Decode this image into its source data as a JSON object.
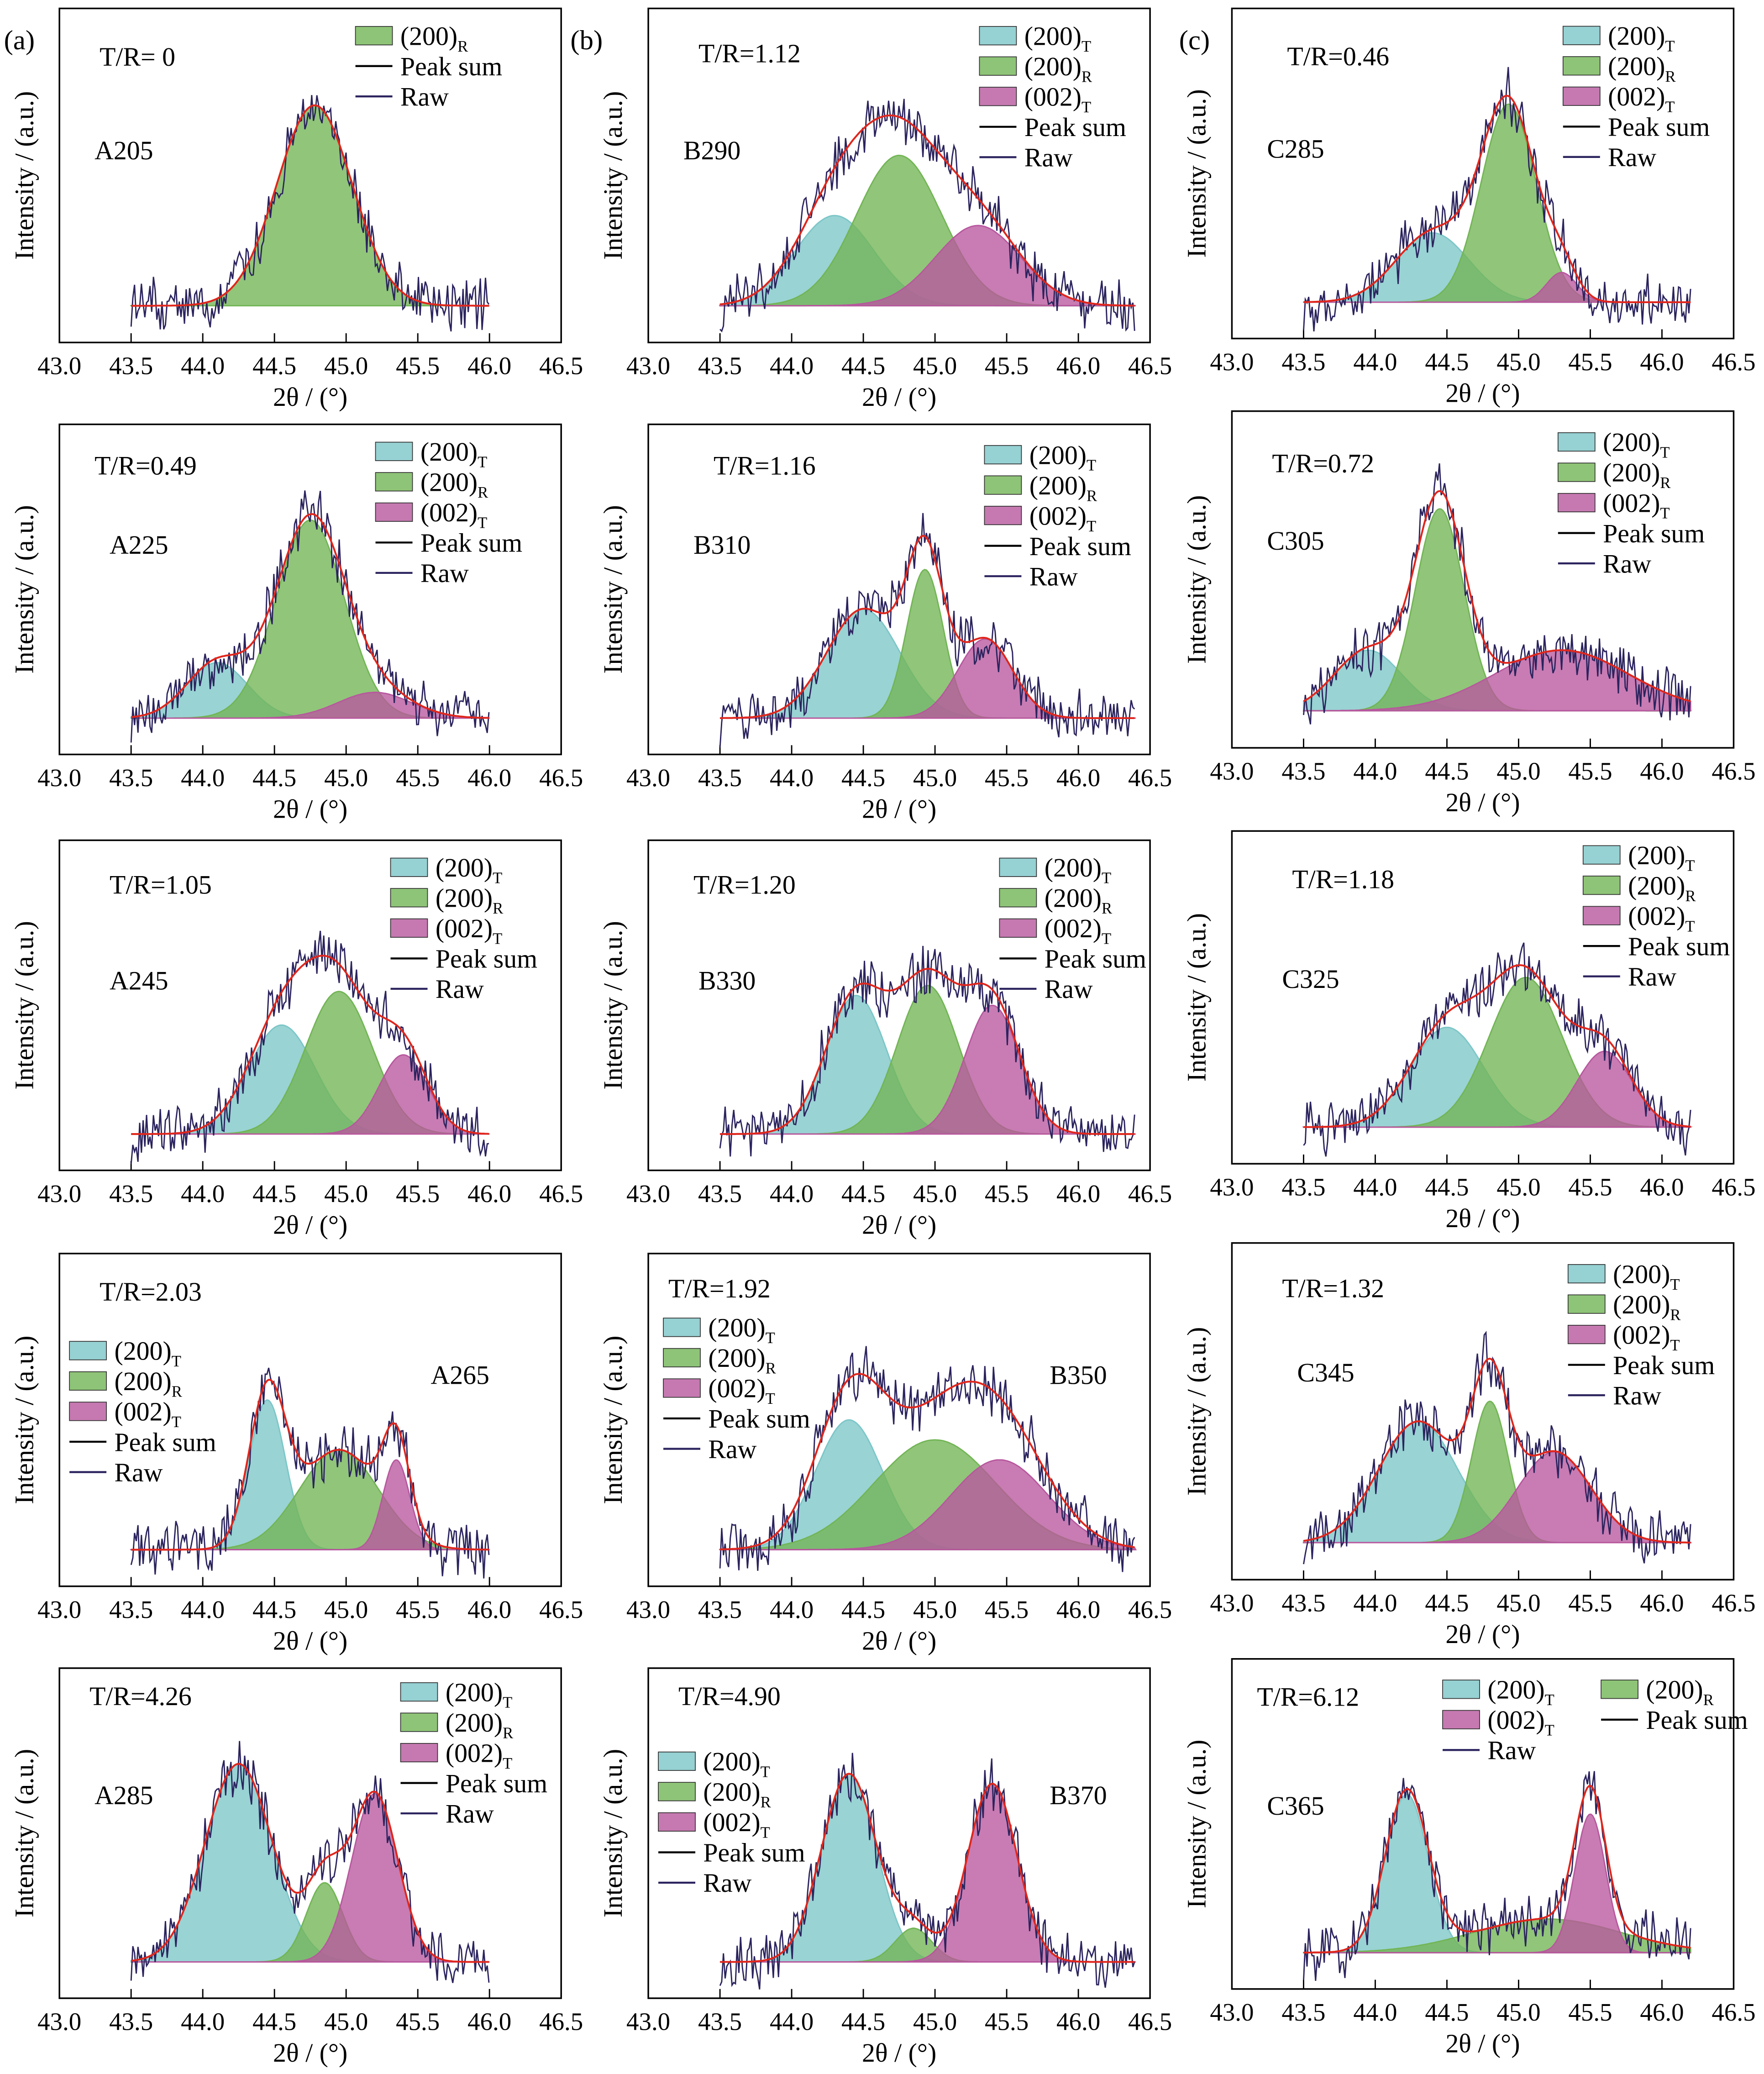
{
  "panel_labels": [
    "(a)",
    "(b)",
    "(c)"
  ],
  "colors": {
    "T200": "#7cc6c8",
    "R200": "#72b555",
    "T002": "#b8579e",
    "peak_sum": "#e0261c",
    "raw": "#2b245e",
    "legend_line": "#000000"
  },
  "chart_data": [
    {
      "type": "line",
      "column": 0,
      "row": 0,
      "ratio_label": "T/R= 0",
      "sample": "A205",
      "xlabel": "2θ / (°)",
      "ylabel": "Intensity / (a.u.)",
      "xlim": [
        43.0,
        46.5
      ],
      "xticks": [
        "43.0",
        "43.5",
        "44.0",
        "44.5",
        "45.0",
        "45.5",
        "46.0",
        "46.5"
      ],
      "raw_range": [
        43.5,
        46.0
      ],
      "components": [
        {
          "key": "R200",
          "center": 44.78,
          "height": 100,
          "fwhm": 0.62
        }
      ],
      "legend": [
        {
          "key": "R200",
          "label": "(200)",
          "sub": "R"
        },
        {
          "key": "peak_sum",
          "label": "Peak sum",
          "sub": ""
        },
        {
          "key": "raw",
          "label": "Raw",
          "sub": ""
        }
      ]
    },
    {
      "type": "line",
      "column": 0,
      "row": 1,
      "ratio_label": "T/R=0.49",
      "sample": "A225",
      "xlabel": "2θ / (°)",
      "ylabel": "Intensity / (a.u.)",
      "xlim": [
        43.0,
        46.5
      ],
      "xticks": [
        "43.0",
        "43.5",
        "44.0",
        "44.5",
        "45.0",
        "45.5",
        "46.0",
        "46.5"
      ],
      "raw_range": [
        43.5,
        46.0
      ],
      "components": [
        {
          "key": "T200",
          "center": 44.1,
          "height": 28,
          "fwhm": 0.5
        },
        {
          "key": "R200",
          "center": 44.75,
          "height": 100,
          "fwhm": 0.56
        },
        {
          "key": "T002",
          "center": 45.2,
          "height": 13,
          "fwhm": 0.6
        }
      ],
      "legend": [
        {
          "key": "T200",
          "label": "(200)",
          "sub": "T"
        },
        {
          "key": "R200",
          "label": "(200)",
          "sub": "R"
        },
        {
          "key": "T002",
          "label": "(002)",
          "sub": "T"
        },
        {
          "key": "peak_sum",
          "label": "Peak sum",
          "sub": ""
        },
        {
          "key": "raw",
          "label": "Raw",
          "sub": ""
        }
      ]
    },
    {
      "type": "line",
      "column": 0,
      "row": 2,
      "ratio_label": "T/R=1.05",
      "sample": "A245",
      "xlabel": "2θ / (°)",
      "ylabel": "Intensity / (a.u.)",
      "xlim": [
        43.0,
        46.5
      ],
      "xticks": [
        "43.0",
        "43.5",
        "44.0",
        "44.5",
        "45.0",
        "45.5",
        "46.0",
        "46.5"
      ],
      "raw_range": [
        43.5,
        46.0
      ],
      "components": [
        {
          "key": "T200",
          "center": 44.55,
          "height": 55,
          "fwhm": 0.55
        },
        {
          "key": "R200",
          "center": 44.95,
          "height": 72,
          "fwhm": 0.55
        },
        {
          "key": "T002",
          "center": 45.4,
          "height": 40,
          "fwhm": 0.4
        }
      ],
      "legend": [
        {
          "key": "T200",
          "label": "(200)",
          "sub": "T"
        },
        {
          "key": "R200",
          "label": "(200)",
          "sub": "R"
        },
        {
          "key": "T002",
          "label": "(002)",
          "sub": "T"
        },
        {
          "key": "peak_sum",
          "label": "Peak sum",
          "sub": ""
        },
        {
          "key": "raw",
          "label": "Raw",
          "sub": ""
        }
      ]
    },
    {
      "type": "line",
      "column": 0,
      "row": 3,
      "ratio_label": "T/R=2.03",
      "sample": "A265",
      "xlabel": "2θ / (°)",
      "ylabel": "Intensity / (a.u.)",
      "xlim": [
        43.0,
        46.5
      ],
      "xticks": [
        "43.0",
        "43.5",
        "44.0",
        "44.5",
        "45.0",
        "45.5",
        "46.0",
        "46.5"
      ],
      "raw_range": [
        43.5,
        46.0
      ],
      "components": [
        {
          "key": "T200",
          "center": 44.45,
          "height": 75,
          "fwhm": 0.3
        },
        {
          "key": "R200",
          "center": 44.95,
          "height": 50,
          "fwhm": 0.65
        },
        {
          "key": "T002",
          "center": 45.35,
          "height": 45,
          "fwhm": 0.22
        }
      ],
      "legend": [
        {
          "key": "T200",
          "label": "(200)",
          "sub": "T"
        },
        {
          "key": "R200",
          "label": "(200)",
          "sub": "R"
        },
        {
          "key": "T002",
          "label": "(002)",
          "sub": "T"
        },
        {
          "key": "peak_sum",
          "label": "Peak sum",
          "sub": ""
        },
        {
          "key": "raw",
          "label": "Raw",
          "sub": ""
        }
      ]
    },
    {
      "type": "line",
      "column": 0,
      "row": 4,
      "ratio_label": "T/R=4.26",
      "sample": "A285",
      "xlabel": "2θ / (°)",
      "ylabel": "Intensity / (a.u.)",
      "xlim": [
        43.0,
        46.5
      ],
      "xticks": [
        "43.0",
        "43.5",
        "44.0",
        "44.5",
        "45.0",
        "45.5",
        "46.0",
        "46.5"
      ],
      "raw_range": [
        43.5,
        46.0
      ],
      "components": [
        {
          "key": "T200",
          "center": 44.25,
          "height": 100,
          "fwhm": 0.55
        },
        {
          "key": "R200",
          "center": 44.85,
          "height": 40,
          "fwhm": 0.3
        },
        {
          "key": "T002",
          "center": 45.2,
          "height": 85,
          "fwhm": 0.38
        }
      ],
      "legend": [
        {
          "key": "T200",
          "label": "(200)",
          "sub": "T"
        },
        {
          "key": "R200",
          "label": "(200)",
          "sub": "R"
        },
        {
          "key": "T002",
          "label": "(002)",
          "sub": "T"
        },
        {
          "key": "peak_sum",
          "label": "Peak sum",
          "sub": ""
        },
        {
          "key": "raw",
          "label": "Raw",
          "sub": ""
        }
      ]
    },
    {
      "type": "line",
      "column": 1,
      "row": 0,
      "ratio_label": "T/R=1.12",
      "sample": "B290",
      "xlabel": "2θ / (°)",
      "ylabel": "Intensity / (a.u.)",
      "xlim": [
        43.0,
        46.5
      ],
      "xticks": [
        "43.0",
        "43.5",
        "44.0",
        "44.5",
        "45.0",
        "45.5",
        "46.0",
        "46.5"
      ],
      "raw_range": [
        43.5,
        46.4
      ],
      "components": [
        {
          "key": "T200",
          "center": 44.3,
          "height": 45,
          "fwhm": 0.65
        },
        {
          "key": "R200",
          "center": 44.75,
          "height": 75,
          "fwhm": 0.7
        },
        {
          "key": "T002",
          "center": 45.3,
          "height": 40,
          "fwhm": 0.7
        }
      ],
      "legend": [
        {
          "key": "T200",
          "label": "(200)",
          "sub": "T"
        },
        {
          "key": "R200",
          "label": "(200)",
          "sub": "R"
        },
        {
          "key": "T002",
          "label": "(002)",
          "sub": "T"
        },
        {
          "key": "peak_sum",
          "label": "Peak sum",
          "sub": ""
        },
        {
          "key": "raw",
          "label": "Raw",
          "sub": ""
        }
      ]
    },
    {
      "type": "line",
      "column": 1,
      "row": 1,
      "ratio_label": "T/R=1.16",
      "sample": "B310",
      "xlabel": "2θ / (°)",
      "ylabel": "Intensity / (a.u.)",
      "xlim": [
        43.0,
        46.5
      ],
      "xticks": [
        "43.0",
        "43.5",
        "44.0",
        "44.5",
        "45.0",
        "45.5",
        "46.0",
        "46.5"
      ],
      "raw_range": [
        43.5,
        46.4
      ],
      "components": [
        {
          "key": "T200",
          "center": 44.5,
          "height": 55,
          "fwhm": 0.6
        },
        {
          "key": "R200",
          "center": 44.93,
          "height": 75,
          "fwhm": 0.3
        },
        {
          "key": "T002",
          "center": 45.35,
          "height": 40,
          "fwhm": 0.45
        }
      ],
      "legend": [
        {
          "key": "T200",
          "label": "(200)",
          "sub": "T"
        },
        {
          "key": "R200",
          "label": "(200)",
          "sub": "R"
        },
        {
          "key": "T002",
          "label": "(002)",
          "sub": "T"
        },
        {
          "key": "peak_sum",
          "label": "Peak sum",
          "sub": ""
        },
        {
          "key": "raw",
          "label": "Raw",
          "sub": ""
        }
      ]
    },
    {
      "type": "line",
      "column": 1,
      "row": 2,
      "ratio_label": "T/R=1.20",
      "sample": "B330",
      "xlabel": "2θ / (°)",
      "ylabel": "Intensity / (a.u.)",
      "xlim": [
        43.0,
        46.5
      ],
      "xticks": [
        "43.0",
        "43.5",
        "44.0",
        "44.5",
        "45.0",
        "45.5",
        "46.0",
        "46.5"
      ],
      "raw_range": [
        43.5,
        46.4
      ],
      "components": [
        {
          "key": "T200",
          "center": 44.45,
          "height": 70,
          "fwhm": 0.5
        },
        {
          "key": "R200",
          "center": 44.95,
          "height": 75,
          "fwhm": 0.5
        },
        {
          "key": "T002",
          "center": 45.4,
          "height": 65,
          "fwhm": 0.45
        }
      ],
      "legend": [
        {
          "key": "T200",
          "label": "(200)",
          "sub": "T"
        },
        {
          "key": "R200",
          "label": "(200)",
          "sub": "R"
        },
        {
          "key": "T002",
          "label": "(002)",
          "sub": "T"
        },
        {
          "key": "peak_sum",
          "label": "Peak sum",
          "sub": ""
        },
        {
          "key": "raw",
          "label": "Raw",
          "sub": ""
        }
      ]
    },
    {
      "type": "line",
      "column": 1,
      "row": 3,
      "ratio_label": "T/R=1.92",
      "sample": "B350",
      "xlabel": "2θ / (°)",
      "ylabel": "Intensity / (a.u.)",
      "xlim": [
        43.0,
        46.5
      ],
      "xticks": [
        "43.0",
        "43.5",
        "44.0",
        "44.5",
        "45.0",
        "45.5",
        "46.0",
        "46.5"
      ],
      "raw_range": [
        43.5,
        46.4
      ],
      "components": [
        {
          "key": "T200",
          "center": 44.4,
          "height": 65,
          "fwhm": 0.55
        },
        {
          "key": "R200",
          "center": 45.0,
          "height": 55,
          "fwhm": 1.0
        },
        {
          "key": "T002",
          "center": 45.45,
          "height": 45,
          "fwhm": 0.8
        }
      ],
      "legend": [
        {
          "key": "T200",
          "label": "(200)",
          "sub": "T"
        },
        {
          "key": "R200",
          "label": "(200)",
          "sub": "R"
        },
        {
          "key": "T002",
          "label": "(002)",
          "sub": "T"
        },
        {
          "key": "peak_sum",
          "label": "Peak sum",
          "sub": ""
        },
        {
          "key": "raw",
          "label": "Raw",
          "sub": ""
        }
      ]
    },
    {
      "type": "line",
      "column": 1,
      "row": 4,
      "ratio_label": "T/R=4.90",
      "sample": "B370",
      "xlabel": "2θ / (°)",
      "ylabel": "Intensity / (a.u.)",
      "xlim": [
        43.0,
        46.5
      ],
      "xticks": [
        "43.0",
        "43.5",
        "44.0",
        "44.5",
        "45.0",
        "45.5",
        "46.0",
        "46.5"
      ],
      "raw_range": [
        43.5,
        46.4
      ],
      "components": [
        {
          "key": "T200",
          "center": 44.4,
          "height": 95,
          "fwhm": 0.45
        },
        {
          "key": "R200",
          "center": 44.85,
          "height": 17,
          "fwhm": 0.3
        },
        {
          "key": "T002",
          "center": 45.4,
          "height": 90,
          "fwhm": 0.4
        }
      ],
      "legend": [
        {
          "key": "T200",
          "label": "(200)",
          "sub": "T"
        },
        {
          "key": "R200",
          "label": "(200)",
          "sub": "R"
        },
        {
          "key": "T002",
          "label": "(002)",
          "sub": "T"
        },
        {
          "key": "peak_sum",
          "label": "Peak sum",
          "sub": ""
        },
        {
          "key": "raw",
          "label": "Raw",
          "sub": ""
        }
      ]
    },
    {
      "type": "line",
      "column": 2,
      "row": 0,
      "ratio_label": "T/R=0.46",
      "sample": "C285",
      "xlabel": "2θ / (°)",
      "ylabel": "Intensity / (a.u.)",
      "xlim": [
        43.0,
        46.5
      ],
      "xticks": [
        "43.0",
        "43.5",
        "44.0",
        "44.5",
        "45.0",
        "45.5",
        "46.0",
        "46.5"
      ],
      "raw_range": [
        43.5,
        46.2
      ],
      "components": [
        {
          "key": "T200",
          "center": 44.4,
          "height": 35,
          "fwhm": 0.6
        },
        {
          "key": "R200",
          "center": 44.93,
          "height": 100,
          "fwhm": 0.45
        },
        {
          "key": "T002",
          "center": 45.3,
          "height": 15,
          "fwhm": 0.25
        }
      ],
      "legend": [
        {
          "key": "T200",
          "label": "(200)",
          "sub": "T"
        },
        {
          "key": "R200",
          "label": "(200)",
          "sub": "R"
        },
        {
          "key": "T002",
          "label": "(002)",
          "sub": "T"
        },
        {
          "key": "peak_sum",
          "label": "Peak sum",
          "sub": ""
        },
        {
          "key": "raw",
          "label": "Raw",
          "sub": ""
        }
      ]
    },
    {
      "type": "line",
      "column": 2,
      "row": 1,
      "ratio_label": "T/R=0.72",
      "sample": "C305",
      "xlabel": "2θ / (°)",
      "ylabel": "Intensity / (a.u.)",
      "xlim": [
        43.0,
        46.5
      ],
      "xticks": [
        "43.0",
        "43.5",
        "44.0",
        "44.5",
        "45.0",
        "45.5",
        "46.0",
        "46.5"
      ],
      "raw_range": [
        43.5,
        46.2
      ],
      "components": [
        {
          "key": "T200",
          "center": 43.95,
          "height": 30,
          "fwhm": 0.55
        },
        {
          "key": "R200",
          "center": 44.45,
          "height": 100,
          "fwhm": 0.4
        },
        {
          "key": "T002",
          "center": 45.3,
          "height": 30,
          "fwhm": 1.1
        }
      ],
      "legend": [
        {
          "key": "T200",
          "label": "(200)",
          "sub": "T"
        },
        {
          "key": "R200",
          "label": "(200)",
          "sub": "R"
        },
        {
          "key": "T002",
          "label": "(002)",
          "sub": "T"
        },
        {
          "key": "peak_sum",
          "label": "Peak sum",
          "sub": ""
        },
        {
          "key": "raw",
          "label": "Raw",
          "sub": ""
        }
      ]
    },
    {
      "type": "line",
      "column": 2,
      "row": 2,
      "ratio_label": "T/R=1.18",
      "sample": "C325",
      "xlabel": "2θ / (°)",
      "ylabel": "Intensity / (a.u.)",
      "xlim": [
        43.0,
        46.5
      ],
      "xticks": [
        "43.0",
        "43.5",
        "44.0",
        "44.5",
        "45.0",
        "45.5",
        "46.0",
        "46.5"
      ],
      "raw_range": [
        43.5,
        46.2
      ],
      "components": [
        {
          "key": "T200",
          "center": 44.5,
          "height": 50,
          "fwhm": 0.6
        },
        {
          "key": "R200",
          "center": 45.05,
          "height": 75,
          "fwhm": 0.6
        },
        {
          "key": "T002",
          "center": 45.6,
          "height": 38,
          "fwhm": 0.45
        }
      ],
      "legend": [
        {
          "key": "T200",
          "label": "(200)",
          "sub": "T"
        },
        {
          "key": "R200",
          "label": "(200)",
          "sub": "R"
        },
        {
          "key": "T002",
          "label": "(002)",
          "sub": "T"
        },
        {
          "key": "peak_sum",
          "label": "Peak sum",
          "sub": ""
        },
        {
          "key": "raw",
          "label": "Raw",
          "sub": ""
        }
      ]
    },
    {
      "type": "line",
      "column": 2,
      "row": 3,
      "ratio_label": "T/R=1.32",
      "sample": "C345",
      "xlabel": "2θ / (°)",
      "ylabel": "Intensity / (a.u.)",
      "xlim": [
        43.0,
        46.5
      ],
      "xticks": [
        "43.0",
        "43.5",
        "44.0",
        "44.5",
        "45.0",
        "45.5",
        "46.0",
        "46.5"
      ],
      "raw_range": [
        43.5,
        46.2
      ],
      "components": [
        {
          "key": "T200",
          "center": 44.3,
          "height": 60,
          "fwhm": 0.65
        },
        {
          "key": "R200",
          "center": 44.8,
          "height": 70,
          "fwhm": 0.3
        },
        {
          "key": "T002",
          "center": 45.25,
          "height": 45,
          "fwhm": 0.6
        }
      ],
      "legend": [
        {
          "key": "T200",
          "label": "(200)",
          "sub": "T"
        },
        {
          "key": "R200",
          "label": "(200)",
          "sub": "R"
        },
        {
          "key": "T002",
          "label": "(002)",
          "sub": "T"
        },
        {
          "key": "peak_sum",
          "label": "Peak sum",
          "sub": ""
        },
        {
          "key": "raw",
          "label": "Raw",
          "sub": ""
        }
      ]
    },
    {
      "type": "line",
      "column": 2,
      "row": 4,
      "ratio_label": "T/R=6.12",
      "sample": "C365",
      "xlabel": "2θ / (°)",
      "ylabel": "Intensity / (a.u.)",
      "xlim": [
        43.0,
        46.5
      ],
      "xticks": [
        "43.0",
        "43.5",
        "44.0",
        "44.5",
        "45.0",
        "45.5",
        "46.0",
        "46.5"
      ],
      "raw_range": [
        43.5,
        46.2
      ],
      "components": [
        {
          "key": "T200",
          "center": 44.22,
          "height": 80,
          "fwhm": 0.35
        },
        {
          "key": "R200",
          "center": 45.2,
          "height": 17,
          "fwhm": 1.2
        },
        {
          "key": "T002",
          "center": 45.5,
          "height": 70,
          "fwhm": 0.25
        }
      ],
      "legend": [
        {
          "key": "T200",
          "label": "(200)",
          "sub": "T"
        },
        {
          "key": "T002",
          "label": "(002)",
          "sub": "T"
        },
        {
          "key": "raw",
          "label": "Raw",
          "sub": ""
        },
        {
          "key": "R200",
          "label": "(200)",
          "sub": "R"
        },
        {
          "key": "peak_sum",
          "label": "Peak sum",
          "sub": ""
        }
      ]
    }
  ]
}
